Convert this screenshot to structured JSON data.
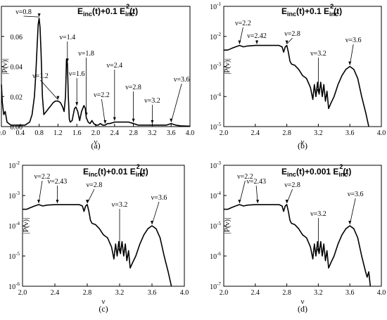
{
  "chart_data": [
    {
      "type": "line",
      "panel": "a",
      "caption": "(a)",
      "title": "E_inc(t)+0.1 E_inc^2(t)",
      "title_parts": [
        "E",
        "inc",
        "(t)+0.1 E",
        "inc",
        "2",
        "(t)"
      ],
      "xlabel": "ν",
      "ylabel": "|P(ν)|",
      "xlim": [
        0.0,
        4.0
      ],
      "ylim": [
        0.0,
        0.08
      ],
      "yscale": "linear",
      "xticks": [
        "0.0",
        "0.4",
        "0.8",
        "1.2",
        "1.6",
        "2.0",
        "2.4",
        "2.8",
        "3.2",
        "3.6",
        "4.0"
      ],
      "yticks": [
        "0.00",
        "0.02",
        "0.04",
        "0.06"
      ],
      "grid": false,
      "series": [
        {
          "x": [
            0.0,
            0.02,
            0.05,
            0.08,
            0.12,
            0.16,
            0.2,
            0.25,
            0.3,
            0.35,
            0.4,
            0.45,
            0.5,
            0.55,
            0.6,
            0.65,
            0.7,
            0.73,
            0.76,
            0.78,
            0.8,
            0.82,
            0.84,
            0.87,
            0.9,
            0.95,
            1.0,
            1.05,
            1.1,
            1.15,
            1.2,
            1.25,
            1.3,
            1.33,
            1.36,
            1.38,
            1.4,
            1.42,
            1.44,
            1.46,
            1.5,
            1.55,
            1.58,
            1.62,
            1.66,
            1.7,
            1.75,
            1.78,
            1.8,
            1.84,
            1.88,
            1.92,
            1.96,
            2.0,
            2.05,
            2.1,
            2.15,
            2.2,
            2.25,
            2.3,
            2.4,
            2.5,
            2.6,
            2.7,
            2.8,
            2.9,
            3.0,
            3.1,
            3.2,
            3.3,
            3.4,
            3.5,
            3.6,
            3.7,
            3.8,
            4.0
          ],
          "y": [
            0.028,
            0.016,
            0.008,
            0.01,
            0.003,
            0.002,
            0.001,
            0.001,
            0.001,
            0.001,
            0.001,
            0.001,
            0.001,
            0.002,
            0.003,
            0.008,
            0.02,
            0.035,
            0.055,
            0.068,
            0.072,
            0.066,
            0.05,
            0.02,
            0.008,
            0.01,
            0.012,
            0.014,
            0.016,
            0.017,
            0.017,
            0.016,
            0.013,
            0.01,
            0.02,
            0.045,
            0.042,
            0.02,
            0.005,
            0.003,
            0.004,
            0.012,
            0.013,
            0.01,
            0.004,
            0.01,
            0.014,
            0.012,
            0.006,
            0.003,
            0.002,
            0.004,
            0.002,
            0.001,
            0.001,
            0.002,
            0.001,
            0.001,
            0.002,
            0.002,
            0.003,
            0.003,
            0.003,
            0.003,
            0.002,
            0.001,
            0.001,
            0.001,
            0.001,
            0.001,
            0.001,
            0.001,
            0.002,
            0.001,
            0.0005,
            0.0003
          ]
        }
      ],
      "annotations": [
        {
          "text": "ν=0.8",
          "x": 0.8
        },
        {
          "text": "ν=1.4",
          "x": 1.4
        },
        {
          "text": "ν=1.2",
          "x": 1.2
        },
        {
          "text": "ν=1.6",
          "x": 1.6
        },
        {
          "text": "ν=1.8",
          "x": 1.8
        },
        {
          "text": "ν=2.4",
          "x": 2.4
        },
        {
          "text": "ν=2.2",
          "x": 2.2
        },
        {
          "text": "ν=2.8",
          "x": 2.8
        },
        {
          "text": "ν=3.2",
          "x": 3.2
        },
        {
          "text": "ν=3.6",
          "x": 3.6
        }
      ]
    },
    {
      "type": "line",
      "panel": "b",
      "caption": "(b)",
      "title": "E_inc(t)+0.1 E_inc^2(t)",
      "title_parts": [
        "E",
        "inc",
        "(t)+0.1 E",
        "inc",
        "2",
        "(t)"
      ],
      "xlabel": "ν",
      "ylabel": "|P(ν)|",
      "xlim": [
        2.0,
        4.0
      ],
      "ylim": [
        1e-05,
        0.1
      ],
      "yscale": "log",
      "xticks": [
        "2.0",
        "2.4",
        "2.8",
        "3.2",
        "3.6",
        "4.0"
      ],
      "yticks": [
        {
          "base": "10",
          "exp": "-1"
        },
        {
          "base": "10",
          "exp": "-2"
        },
        {
          "base": "10",
          "exp": "-3"
        },
        {
          "base": "10",
          "exp": "-4"
        },
        {
          "base": "10",
          "exp": "-5"
        }
      ],
      "grid": false,
      "series": [
        {
          "x": [
            2.0,
            2.05,
            2.1,
            2.15,
            2.2,
            2.25,
            2.3,
            2.4,
            2.5,
            2.6,
            2.7,
            2.74,
            2.76,
            2.78,
            2.8,
            2.82,
            2.84,
            2.86,
            2.9,
            2.95,
            3.0,
            3.05,
            3.1,
            3.13,
            3.15,
            3.17,
            3.19,
            3.21,
            3.23,
            3.25,
            3.27,
            3.29,
            3.31,
            3.33,
            3.36,
            3.4,
            3.45,
            3.5,
            3.55,
            3.6,
            3.65,
            3.7,
            3.75,
            3.8,
            3.84
          ],
          "y": [
            0.0035,
            0.0035,
            0.004,
            0.0045,
            0.005,
            0.0045,
            0.0048,
            0.005,
            0.005,
            0.005,
            0.005,
            0.0045,
            0.003,
            0.0045,
            0.005,
            0.003,
            0.0015,
            0.0012,
            0.0011,
            0.0008,
            0.0005,
            0.0004,
            0.0002,
            8e-05,
            0.00025,
            0.0001,
            0.0003,
            0.00012,
            0.0003,
            0.0001,
            0.00025,
            7e-05,
            0.00015,
            4e-05,
            6e-05,
            0.0001,
            0.00025,
            0.0005,
            0.0008,
            0.001,
            0.0008,
            0.0004,
            0.0001,
            3e-05,
            1e-05
          ]
        }
      ],
      "annotations": [
        {
          "text": "ν=2.2",
          "x": 2.2
        },
        {
          "text": "ν=2.42",
          "x": 2.42
        },
        {
          "text": "ν=2.8",
          "x": 2.8
        },
        {
          "text": "ν=3.2",
          "x": 3.2
        },
        {
          "text": "ν=3.6",
          "x": 3.6
        }
      ]
    },
    {
      "type": "line",
      "panel": "c",
      "caption": "(c)",
      "title": "E_inc(t)+0.01 E_inc^2(t)",
      "title_parts": [
        "E",
        "inc",
        "(t)+0.01 E",
        "inc",
        "2",
        "(t)"
      ],
      "xlabel": "ν",
      "ylabel": "|P(ν)|",
      "xlim": [
        2.0,
        4.0
      ],
      "ylim": [
        1e-06,
        0.01
      ],
      "yscale": "log",
      "xticks": [
        "2.0",
        "2.4",
        "2.8",
        "3.2",
        "3.6",
        "4.0"
      ],
      "yticks": [
        {
          "base": "10",
          "exp": "-2"
        },
        {
          "base": "10",
          "exp": "-3"
        },
        {
          "base": "10",
          "exp": "-4"
        },
        {
          "base": "10",
          "exp": "-5"
        },
        {
          "base": "10",
          "exp": "-6"
        }
      ],
      "grid": false,
      "series": [
        {
          "x": [
            2.0,
            2.05,
            2.1,
            2.15,
            2.2,
            2.25,
            2.3,
            2.4,
            2.5,
            2.6,
            2.7,
            2.74,
            2.76,
            2.78,
            2.8,
            2.82,
            2.84,
            2.86,
            2.9,
            2.95,
            3.0,
            3.05,
            3.1,
            3.13,
            3.15,
            3.17,
            3.19,
            3.21,
            3.23,
            3.25,
            3.27,
            3.29,
            3.31,
            3.33,
            3.36,
            3.4,
            3.45,
            3.5,
            3.55,
            3.6,
            3.65,
            3.7,
            3.75,
            3.8,
            3.84
          ],
          "y": [
            0.00035,
            0.00035,
            0.0004,
            0.00045,
            0.0005,
            0.00045,
            0.00048,
            0.0005,
            0.0005,
            0.0005,
            0.0005,
            0.00045,
            0.0003,
            0.00045,
            0.0005,
            0.0003,
            0.00015,
            0.00012,
            0.00011,
            8e-05,
            5e-05,
            4e-05,
            2e-05,
            8e-06,
            2.5e-05,
            1e-05,
            3e-05,
            1.2e-05,
            3e-05,
            1e-05,
            2.5e-05,
            7e-06,
            1.5e-05,
            4e-06,
            6e-06,
            1e-05,
            2.5e-05,
            5e-05,
            8e-05,
            0.0001,
            8e-05,
            4e-05,
            1e-05,
            3e-06,
            1e-06
          ]
        }
      ],
      "annotations": [
        {
          "text": "ν=2.2",
          "x": 2.2
        },
        {
          "text": "ν=2.43",
          "x": 2.43
        },
        {
          "text": "ν=2.8",
          "x": 2.8
        },
        {
          "text": "ν=3.2",
          "x": 3.2
        },
        {
          "text": "ν=3.6",
          "x": 3.6
        }
      ]
    },
    {
      "type": "line",
      "panel": "d",
      "caption": "(d)",
      "title": "E_inc(t)+0.001 E_inc^2(t)",
      "title_parts": [
        "E",
        "inc",
        "(t)+0.001 E",
        "inc",
        "2",
        "(t)"
      ],
      "xlabel": "ν",
      "ylabel": "|P(ν)|",
      "xlim": [
        2.0,
        4.0
      ],
      "ylim": [
        1e-07,
        0.001
      ],
      "yscale": "log",
      "xticks": [
        "2.0",
        "2.4",
        "2.8",
        "3.2",
        "3.6",
        "4.0"
      ],
      "yticks": [
        {
          "base": "10",
          "exp": "-3"
        },
        {
          "base": "10",
          "exp": "-4"
        },
        {
          "base": "10",
          "exp": "-5"
        },
        {
          "base": "10",
          "exp": "-6"
        },
        {
          "base": "10",
          "exp": "-7"
        }
      ],
      "grid": false,
      "series": [
        {
          "x": [
            2.0,
            2.05,
            2.1,
            2.15,
            2.2,
            2.25,
            2.3,
            2.4,
            2.5,
            2.6,
            2.7,
            2.74,
            2.76,
            2.78,
            2.8,
            2.82,
            2.84,
            2.86,
            2.9,
            2.95,
            3.0,
            3.05,
            3.1,
            3.13,
            3.15,
            3.17,
            3.19,
            3.21,
            3.23,
            3.25,
            3.27,
            3.29,
            3.31,
            3.33,
            3.36,
            3.4,
            3.45,
            3.5,
            3.55,
            3.6,
            3.65,
            3.7,
            3.75,
            3.8,
            3.82,
            3.84,
            3.86
          ],
          "y": [
            3.5e-05,
            3.5e-05,
            4e-05,
            4.5e-05,
            5e-05,
            4.5e-05,
            4.8e-05,
            5e-05,
            5e-05,
            5e-05,
            5e-05,
            4.5e-05,
            3e-05,
            4.5e-05,
            5e-05,
            3e-05,
            1.5e-05,
            1.2e-05,
            1.1e-05,
            8e-06,
            5e-06,
            4e-06,
            2e-06,
            8e-07,
            2.5e-06,
            1e-06,
            3e-06,
            1.2e-06,
            3e-06,
            1e-06,
            2.5e-06,
            7e-07,
            1.5e-06,
            4e-07,
            6e-07,
            1e-06,
            2.5e-06,
            5e-06,
            8e-06,
            1e-05,
            8e-06,
            4e-06,
            1e-06,
            3e-07,
            2e-07,
            3e-07,
            1e-07
          ]
        }
      ],
      "annotations": [
        {
          "text": "ν=2.2",
          "x": 2.2
        },
        {
          "text": "ν=2.43",
          "x": 2.43
        },
        {
          "text": "ν=2.8",
          "x": 2.8
        },
        {
          "text": "ν=3.2",
          "x": 3.2
        },
        {
          "text": "ν=3.6",
          "x": 3.6
        }
      ]
    }
  ]
}
